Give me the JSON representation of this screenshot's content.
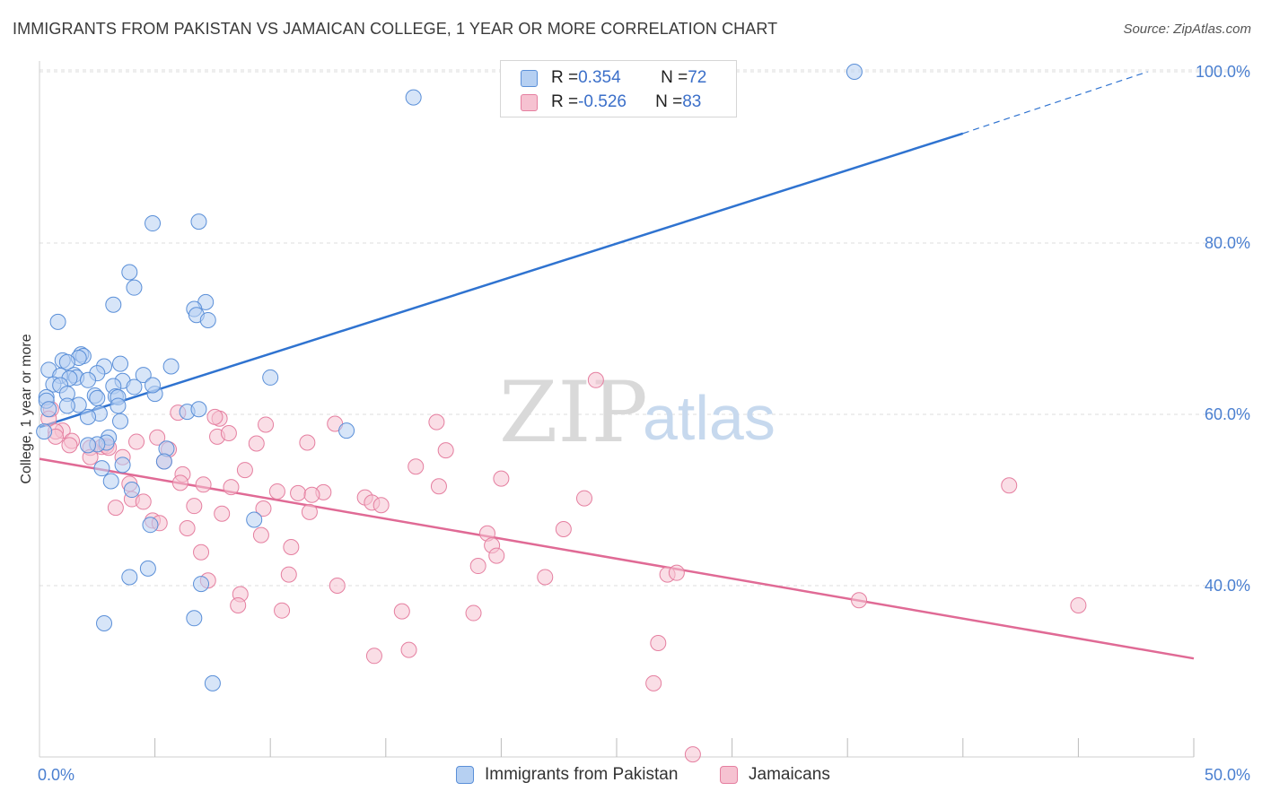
{
  "title": "IMMIGRANTS FROM PAKISTAN VS JAMAICAN COLLEGE, 1 YEAR OR MORE CORRELATION CHART",
  "source": "Source: ZipAtlas.com",
  "watermark": {
    "zip": "ZIP",
    "atlas": "atlas"
  },
  "legend": {
    "rows": [
      {
        "r_label": "R = ",
        "r_value": "0.354",
        "n_label": "N = ",
        "n_value": "72"
      },
      {
        "r_label": "R = ",
        "r_value": "-0.526",
        "n_label": "N = ",
        "n_value": "83"
      }
    ]
  },
  "colors": {
    "blue_fill": "#b6d0f2",
    "blue_stroke": "#5a8fd8",
    "blue_line": "#2f73d0",
    "pink_fill": "#f6c2d1",
    "pink_stroke": "#e57fa0",
    "pink_line": "#e06a95",
    "grid": "#dddddd",
    "tick_text": "#4a7fd0"
  },
  "chart_data": {
    "type": "scatter",
    "title": "IMMIGRANTS FROM PAKISTAN VS JAMAICAN COLLEGE, 1 YEAR OR MORE CORRELATION CHART",
    "xlabel": "",
    "ylabel": "College, 1 year or more",
    "xlim": [
      0,
      50
    ],
    "ylim": [
      20,
      102
    ],
    "x_tick_labels": [
      "0.0%",
      "50.0%"
    ],
    "y_ticks": [
      40,
      60,
      80,
      100
    ],
    "y_tick_labels": [
      "40.0%",
      "60.0%",
      "80.0%",
      "100.0%"
    ],
    "grid": "horizontal dashed",
    "legend_position": "top-center",
    "series": [
      {
        "name": "Immigrants from Pakistan",
        "color": "blue",
        "trend": {
          "x": [
            0,
            40
          ],
          "y": [
            58.5,
            92.8
          ],
          "dashed_extension_to": [
            48,
            100
          ]
        },
        "points": [
          [
            35.3,
            100.0
          ],
          [
            16.2,
            97.0
          ],
          [
            6.9,
            82.5
          ],
          [
            4.9,
            82.3
          ],
          [
            3.9,
            76.6
          ],
          [
            4.1,
            74.8
          ],
          [
            7.2,
            73.1
          ],
          [
            3.2,
            72.8
          ],
          [
            6.7,
            72.3
          ],
          [
            6.8,
            71.6
          ],
          [
            7.3,
            71.0
          ],
          [
            0.8,
            70.8
          ],
          [
            1.8,
            67.0
          ],
          [
            1.9,
            66.8
          ],
          [
            1.7,
            66.6
          ],
          [
            1.0,
            66.3
          ],
          [
            1.2,
            66.1
          ],
          [
            3.5,
            65.9
          ],
          [
            2.8,
            65.6
          ],
          [
            5.7,
            65.6
          ],
          [
            0.4,
            65.2
          ],
          [
            2.5,
            64.8
          ],
          [
            4.5,
            64.6
          ],
          [
            1.5,
            64.6
          ],
          [
            0.9,
            64.5
          ],
          [
            1.6,
            64.3
          ],
          [
            1.3,
            64.2
          ],
          [
            2.1,
            64.0
          ],
          [
            3.6,
            63.9
          ],
          [
            10.0,
            64.3
          ],
          [
            0.6,
            63.5
          ],
          [
            0.9,
            63.4
          ],
          [
            3.2,
            63.3
          ],
          [
            4.1,
            63.2
          ],
          [
            1.2,
            62.4
          ],
          [
            5.0,
            62.4
          ],
          [
            2.4,
            62.2
          ],
          [
            3.3,
            62.1
          ],
          [
            3.4,
            62.0
          ],
          [
            2.5,
            61.9
          ],
          [
            0.3,
            62.0
          ],
          [
            0.3,
            61.6
          ],
          [
            1.7,
            61.1
          ],
          [
            1.2,
            61.0
          ],
          [
            3.4,
            61.0
          ],
          [
            0.4,
            60.6
          ],
          [
            6.4,
            60.3
          ],
          [
            2.6,
            60.1
          ],
          [
            2.1,
            59.7
          ],
          [
            3.5,
            59.2
          ],
          [
            13.3,
            58.1
          ],
          [
            0.2,
            58.0
          ],
          [
            3.0,
            57.3
          ],
          [
            2.9,
            56.7
          ],
          [
            2.5,
            56.5
          ],
          [
            5.5,
            56.0
          ],
          [
            2.1,
            56.4
          ],
          [
            5.4,
            54.5
          ],
          [
            3.6,
            54.1
          ],
          [
            2.7,
            53.7
          ],
          [
            3.1,
            52.2
          ],
          [
            4.0,
            51.2
          ],
          [
            9.3,
            47.7
          ],
          [
            4.8,
            47.1
          ],
          [
            4.7,
            42.0
          ],
          [
            3.9,
            41.0
          ],
          [
            7.0,
            40.2
          ],
          [
            6.7,
            36.2
          ],
          [
            2.8,
            35.6
          ],
          [
            7.5,
            28.6
          ],
          [
            6.9,
            60.6
          ],
          [
            4.9,
            63.4
          ]
        ]
      },
      {
        "name": "Jamaicans",
        "color": "pink",
        "trend": {
          "x": [
            0,
            50
          ],
          "y": [
            54.8,
            31.5
          ]
        },
        "points": [
          [
            24.1,
            64.0
          ],
          [
            0.5,
            60.6
          ],
          [
            0.4,
            59.5
          ],
          [
            7.8,
            59.5
          ],
          [
            9.8,
            58.8
          ],
          [
            12.8,
            58.9
          ],
          [
            17.2,
            59.1
          ],
          [
            6.0,
            60.2
          ],
          [
            1.0,
            58.1
          ],
          [
            0.7,
            58.0
          ],
          [
            0.7,
            57.4
          ],
          [
            1.4,
            56.9
          ],
          [
            7.7,
            57.4
          ],
          [
            5.1,
            57.3
          ],
          [
            4.2,
            56.8
          ],
          [
            9.4,
            56.6
          ],
          [
            11.6,
            56.7
          ],
          [
            1.3,
            56.4
          ],
          [
            2.2,
            56.1
          ],
          [
            2.7,
            56.2
          ],
          [
            2.9,
            56.3
          ],
          [
            3.0,
            56.1
          ],
          [
            5.6,
            55.9
          ],
          [
            17.6,
            55.8
          ],
          [
            2.2,
            55.0
          ],
          [
            3.6,
            55.0
          ],
          [
            5.4,
            54.5
          ],
          [
            16.3,
            53.9
          ],
          [
            8.9,
            53.5
          ],
          [
            6.2,
            53.0
          ],
          [
            20.0,
            52.5
          ],
          [
            6.1,
            52.0
          ],
          [
            7.1,
            51.8
          ],
          [
            3.9,
            51.9
          ],
          [
            8.3,
            51.5
          ],
          [
            17.3,
            51.6
          ],
          [
            10.3,
            51.0
          ],
          [
            11.2,
            50.8
          ],
          [
            12.3,
            50.9
          ],
          [
            11.8,
            50.6
          ],
          [
            4.0,
            50.1
          ],
          [
            14.1,
            50.3
          ],
          [
            14.4,
            49.7
          ],
          [
            23.6,
            50.2
          ],
          [
            4.5,
            49.8
          ],
          [
            6.7,
            49.3
          ],
          [
            3.3,
            49.1
          ],
          [
            9.7,
            49.0
          ],
          [
            7.9,
            48.4
          ],
          [
            11.7,
            48.6
          ],
          [
            14.8,
            49.4
          ],
          [
            42.0,
            51.7
          ],
          [
            4.9,
            47.6
          ],
          [
            5.2,
            47.3
          ],
          [
            6.4,
            46.7
          ],
          [
            22.7,
            46.6
          ],
          [
            19.4,
            46.1
          ],
          [
            9.6,
            45.9
          ],
          [
            10.9,
            44.5
          ],
          [
            19.6,
            44.7
          ],
          [
            7.0,
            43.9
          ],
          [
            19.8,
            43.5
          ],
          [
            19.0,
            42.3
          ],
          [
            10.8,
            41.3
          ],
          [
            21.9,
            41.0
          ],
          [
            7.3,
            40.6
          ],
          [
            27.2,
            41.3
          ],
          [
            27.6,
            41.5
          ],
          [
            12.9,
            40.0
          ],
          [
            8.7,
            39.0
          ],
          [
            8.6,
            37.7
          ],
          [
            35.5,
            38.3
          ],
          [
            45.0,
            37.7
          ],
          [
            10.5,
            37.1
          ],
          [
            15.7,
            37.0
          ],
          [
            18.8,
            36.8
          ],
          [
            26.8,
            33.3
          ],
          [
            16.0,
            32.5
          ],
          [
            14.5,
            31.8
          ],
          [
            26.6,
            28.6
          ],
          [
            28.3,
            20.3
          ],
          [
            7.6,
            59.7
          ],
          [
            8.2,
            57.8
          ]
        ]
      }
    ]
  },
  "bottom_legend": {
    "items": [
      {
        "label": "Immigrants from Pakistan"
      },
      {
        "label": "Jamaicans"
      }
    ]
  }
}
